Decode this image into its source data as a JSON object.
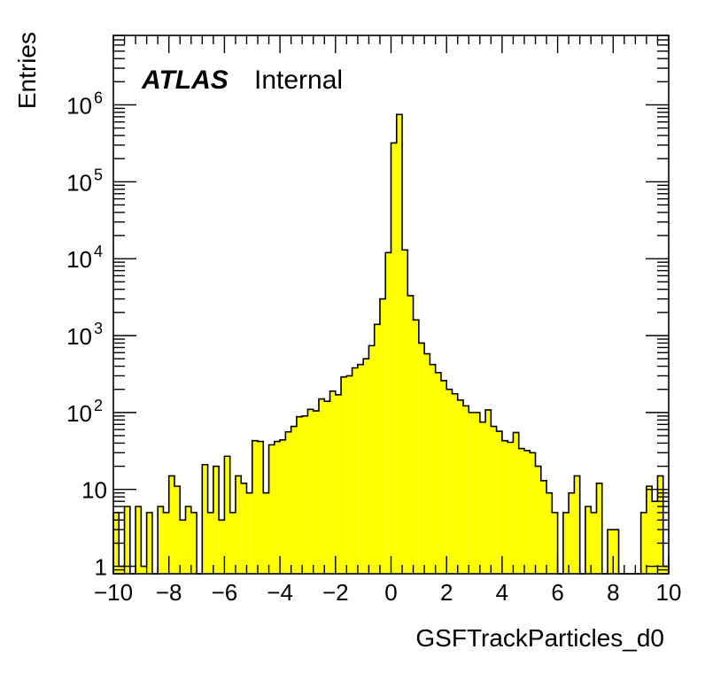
{
  "chart_data": {
    "type": "bar",
    "histogram": true,
    "log_scale_y": true,
    "x_range": [
      -10,
      10
    ],
    "y_range": [
      0.8,
      8000000
    ],
    "xlabel": "GSFTrackParticles_d0",
    "ylabel": "Entries",
    "label_bold": "ATLAS",
    "label_normal": "Internal",
    "fill_color": "#ffff00",
    "line_color": "#000000",
    "x_ticks": [
      "−10",
      "−8",
      "−6",
      "−4",
      "−2",
      "0",
      "2",
      "4",
      "6",
      "8",
      "10"
    ],
    "y_ticks": [
      {
        "base": "1",
        "exp": ""
      },
      {
        "base": "10",
        "exp": ""
      },
      {
        "base": "10",
        "exp": "2"
      },
      {
        "base": "10",
        "exp": "3"
      },
      {
        "base": "10",
        "exp": "4"
      },
      {
        "base": "10",
        "exp": "5"
      },
      {
        "base": "10",
        "exp": "6"
      }
    ],
    "bin_width": 0.2,
    "bin_low_edges": [
      -10.0,
      -9.8,
      -9.6,
      -9.4,
      -9.2,
      -9.0,
      -8.8,
      -8.6,
      -8.4,
      -8.2,
      -8.0,
      -7.8,
      -7.6,
      -7.4,
      -7.2,
      -7.0,
      -6.8,
      -6.6,
      -6.4,
      -6.2,
      -6.0,
      -5.8,
      -5.6,
      -5.4,
      -5.2,
      -5.0,
      -4.8,
      -4.6,
      -4.4,
      -4.2,
      -4.0,
      -3.8,
      -3.6,
      -3.4,
      -3.2,
      -3.0,
      -2.8,
      -2.6,
      -2.4,
      -2.2,
      -2.0,
      -1.8,
      -1.6,
      -1.4,
      -1.2,
      -1.0,
      -0.8,
      -0.6,
      -0.4,
      -0.2,
      0.0,
      0.2,
      0.4,
      0.6,
      0.8,
      1.0,
      1.2,
      1.4,
      1.6,
      1.8,
      2.0,
      2.2,
      2.4,
      2.6,
      2.8,
      3.0,
      3.2,
      3.4,
      3.6,
      3.8,
      4.0,
      4.2,
      4.4,
      4.6,
      4.8,
      5.0,
      5.2,
      5.4,
      5.6,
      5.8,
      6.0,
      6.2,
      6.4,
      6.6,
      6.8,
      7.0,
      7.2,
      7.4,
      7.6,
      7.8,
      8.0,
      8.2,
      8.4,
      8.6,
      8.8,
      9.0,
      9.2,
      9.4,
      9.6,
      9.8
    ],
    "values": [
      5,
      1,
      6,
      0,
      6,
      1,
      5,
      0,
      6,
      5,
      15,
      11,
      4,
      6,
      5,
      0,
      21,
      5,
      20,
      4,
      27,
      5,
      15,
      12,
      9,
      43,
      42,
      9,
      38,
      42,
      44,
      56,
      66,
      88,
      90,
      110,
      105,
      150,
      140,
      190,
      170,
      290,
      300,
      380,
      420,
      500,
      740,
      1400,
      3000,
      12000,
      320000,
      750000,
      13000,
      3300,
      1600,
      800,
      580,
      420,
      330,
      260,
      200,
      175,
      145,
      122,
      100,
      100,
      75,
      108,
      66,
      57,
      43,
      41,
      55,
      34,
      32,
      30,
      20,
      13,
      9,
      5,
      0,
      5,
      9,
      15,
      0,
      6,
      5,
      12,
      0,
      3,
      3,
      0,
      0,
      0,
      0,
      5,
      11,
      7,
      15,
      1
    ]
  }
}
